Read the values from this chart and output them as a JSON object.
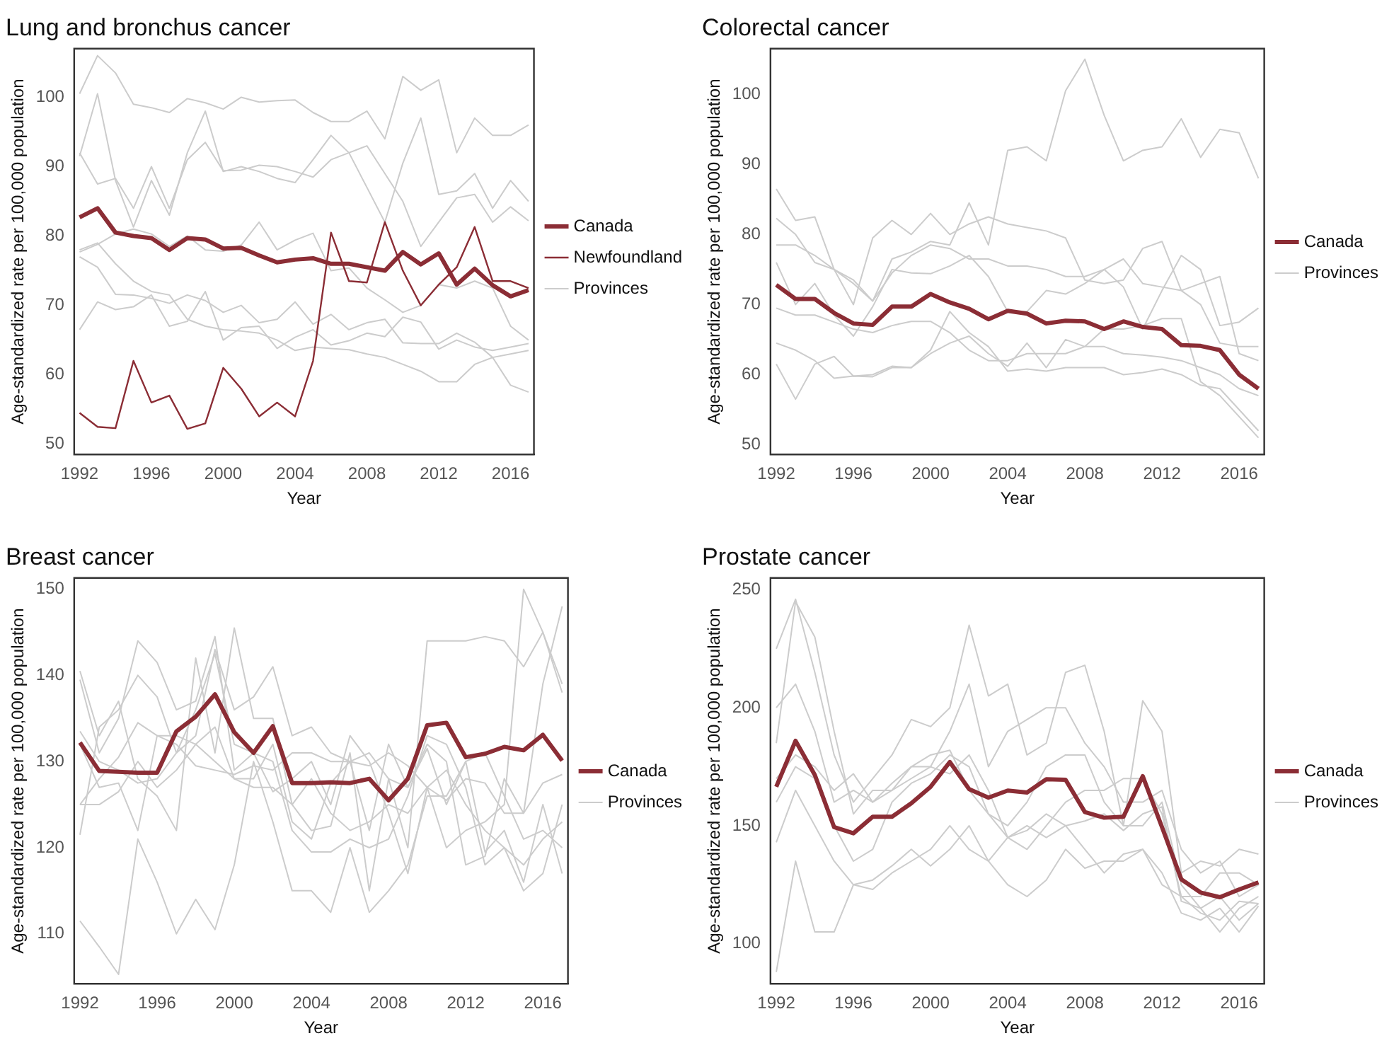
{
  "chart_data": [
    {
      "type": "line",
      "title": "Lung and bronchus cancer",
      "xlabel": "Year",
      "ylabel": "Age-standardized rate per 100,000 population",
      "x": [
        1992,
        1993,
        1994,
        1995,
        1996,
        1997,
        1998,
        1999,
        2000,
        2001,
        2002,
        2003,
        2004,
        2005,
        2006,
        2007,
        2008,
        2009,
        2010,
        2011,
        2012,
        2013,
        2014,
        2015,
        2016,
        2017
      ],
      "xlim": [
        1991.7,
        2017.3
      ],
      "xticks": [
        1992,
        1996,
        2000,
        2004,
        2008,
        2012,
        2016
      ],
      "ylim": [
        48.5,
        107
      ],
      "yticks": [
        50,
        60,
        70,
        80,
        90,
        100
      ],
      "grid": false,
      "legend": "right",
      "series": [
        {
          "name": "Canada",
          "color": "#8b2d35",
          "values": [
            82.7,
            84,
            80.5,
            80,
            79.7,
            78,
            79.7,
            79.5,
            78.2,
            78.3,
            77.2,
            76.2,
            76.6,
            76.8,
            76,
            76,
            75.5,
            75,
            77.7,
            75.9,
            77.5,
            73,
            75.3,
            72.9,
            71.3,
            72.2
          ]
        },
        {
          "name": "Newfoundland",
          "color": "#8b2d35",
          "values": [
            54.5,
            52.5,
            52.3,
            62,
            56,
            57,
            52.2,
            53,
            61,
            58,
            54,
            56,
            54,
            62,
            80.5,
            73.5,
            73.3,
            82,
            75,
            70,
            73,
            75.5,
            81.3,
            73.5,
            73.5,
            72.5
          ]
        },
        {
          "name": "Provinces",
          "color": "#cccccc",
          "values": [
            100.5,
            106,
            103.5,
            99,
            98.5,
            97.8,
            99.8,
            99.2,
            98.3,
            100,
            99.3,
            99.5,
            99.6,
            97.8,
            96.5,
            96.5,
            98,
            94,
            103,
            101,
            102.5,
            92,
            97,
            94.5,
            94.5,
            96
          ]
        },
        {
          "color": "#cccccc",
          "values": [
            91.5,
            100.5,
            88,
            81.3,
            88,
            83,
            92,
            98,
            89.3,
            90,
            89.3,
            88.3,
            87.7,
            91,
            94.5,
            92,
            87,
            82,
            90.5,
            97,
            86,
            86.5,
            89,
            84,
            88,
            85
          ]
        },
        {
          "color": "#cccccc",
          "values": [
            92,
            87.5,
            88.3,
            84,
            90,
            84,
            91,
            93.5,
            89.4,
            89.5,
            90.2,
            90,
            89.3,
            88.5,
            91,
            92,
            93,
            89,
            85,
            78.5,
            82,
            85.5,
            86,
            82,
            84.2,
            82.2
          ]
        },
        {
          "color": "#cccccc",
          "values": [
            77.7,
            78.8,
            80.3,
            81,
            80.3,
            78.5,
            80,
            78,
            77.8,
            78.7,
            82,
            78,
            79.4,
            80.4,
            75,
            75.4,
            72.5,
            70.8,
            69,
            70,
            73,
            72.5,
            73.5,
            72.5,
            67,
            65
          ]
        },
        {
          "color": "#cccccc",
          "values": [
            77,
            75.5,
            71.6,
            71.5,
            71,
            70.3,
            71.5,
            70.7,
            69,
            70,
            67.5,
            68,
            70.5,
            67.3,
            68.7,
            66.5,
            67.5,
            68,
            64.6,
            64.5,
            64.5,
            66,
            64.7,
            62.5,
            63,
            63.5
          ]
        },
        {
          "color": "#cccccc",
          "values": [
            66.5,
            70.5,
            69.4,
            69.8,
            71.5,
            67,
            67.7,
            72,
            65,
            66.8,
            67,
            63.8,
            65.4,
            66.5,
            64.3,
            64.9,
            66,
            65.5,
            68.3,
            67.6,
            63.7,
            65,
            64,
            63.5,
            64,
            64.5
          ]
        },
        {
          "color": "#cccccc",
          "values": [
            78,
            79,
            76,
            73.5,
            72,
            71.5,
            68,
            67,
            66.5,
            66.3,
            66,
            65,
            63.5,
            64,
            63.8,
            63.6,
            63,
            62.5,
            61.5,
            60.5,
            59,
            59,
            61.5,
            62.5,
            58.5,
            57.5
          ]
        }
      ]
    },
    {
      "type": "line",
      "title": "Colorectal cancer",
      "xlabel": "Year",
      "ylabel": "Age-standardized rate per 100,000 population",
      "x": [
        1992,
        1993,
        1994,
        1995,
        1996,
        1997,
        1998,
        1999,
        2000,
        2001,
        2002,
        2003,
        2004,
        2005,
        2006,
        2007,
        2008,
        2009,
        2010,
        2011,
        2012,
        2013,
        2014,
        2015,
        2016,
        2017
      ],
      "xlim": [
        1991.7,
        2017.3
      ],
      "xticks": [
        1992,
        1996,
        2000,
        2004,
        2008,
        2012,
        2016
      ],
      "ylim": [
        48.6,
        106.5
      ],
      "yticks": [
        50,
        60,
        70,
        80,
        90,
        100
      ],
      "grid": false,
      "legend": "right",
      "series": [
        {
          "name": "Canada",
          "color": "#8b2d35",
          "values": [
            72.8,
            70.8,
            70.8,
            68.8,
            67.3,
            67.1,
            69.7,
            69.7,
            71.5,
            70.3,
            69.4,
            67.9,
            69.1,
            68.7,
            67.3,
            67.7,
            67.6,
            66.5,
            67.6,
            66.8,
            66.5,
            64.2,
            64.1,
            63.5,
            60,
            58
          ]
        },
        {
          "name": "Provinces",
          "color": "#cccccc",
          "values": [
            78.5,
            78.5,
            77,
            75,
            73,
            70.5,
            76.5,
            77.5,
            79,
            78.5,
            84.5,
            78.5,
            92,
            92.5,
            90.5,
            100.5,
            105,
            97,
            90.5,
            92,
            92.5,
            96.5,
            91,
            95,
            94.5,
            88
          ]
        },
        {
          "color": "#cccccc",
          "values": [
            86.5,
            82,
            82.5,
            75,
            70,
            79.5,
            82,
            80,
            83,
            80,
            81.5,
            82.5,
            81.5,
            81,
            80.5,
            79.5,
            73.5,
            73,
            73.5,
            78,
            79,
            72,
            73,
            74,
            63,
            62
          ]
        },
        {
          "color": "#cccccc",
          "values": [
            82.3,
            80,
            76,
            75,
            73.5,
            70.5,
            74.5,
            77,
            78.5,
            78,
            76.5,
            76.5,
            75.5,
            75.5,
            75,
            74,
            74,
            75,
            72.5,
            66.5,
            72,
            77,
            75,
            67,
            67.5,
            69.5
          ]
        },
        {
          "color": "#cccccc",
          "values": [
            76,
            70,
            73,
            68.5,
            65.5,
            69.7,
            75,
            74.5,
            74.4,
            75.5,
            77,
            74,
            69,
            69,
            72,
            71.5,
            73,
            75,
            76.5,
            73,
            72.5,
            72,
            70,
            64.5,
            64,
            64
          ]
        },
        {
          "color": "#cccccc",
          "values": [
            69.5,
            68.5,
            68.5,
            67.5,
            66.5,
            66,
            67,
            67.6,
            67.6,
            66,
            63.5,
            62,
            62,
            63,
            63,
            63,
            64,
            64,
            63,
            62.8,
            62.5,
            62,
            61,
            60,
            58,
            57
          ]
        },
        {
          "color": "#cccccc",
          "values": [
            64.5,
            63.5,
            62,
            59.5,
            59.8,
            59.7,
            61,
            61,
            63.5,
            69,
            66,
            64,
            60.5,
            60.8,
            60.5,
            61,
            61,
            61,
            60,
            60.3,
            60.8,
            60,
            58.5,
            58,
            55,
            52
          ]
        },
        {
          "color": "#cccccc",
          "values": [
            61.5,
            56.5,
            61.5,
            62.6,
            59.8,
            60,
            61.2,
            61,
            63,
            64.5,
            65.5,
            63,
            61.2,
            64.5,
            61,
            65,
            64,
            66.5,
            66.5,
            67,
            68,
            68,
            59,
            57,
            54,
            51
          ]
        }
      ]
    },
    {
      "type": "line",
      "title": "Breast cancer",
      "xlabel": "Year",
      "ylabel": "Age-standardized rate per 100,000 population",
      "x": [
        1992,
        1993,
        1994,
        1995,
        1996,
        1997,
        1998,
        1999,
        2000,
        2001,
        2002,
        2003,
        2004,
        2005,
        2006,
        2007,
        2008,
        2009,
        2010,
        2011,
        2012,
        2013,
        2014,
        2015,
        2016,
        2017
      ],
      "xlim": [
        1991.7,
        2017.3
      ],
      "xticks": [
        1992,
        1996,
        2000,
        2004,
        2008,
        2012,
        2016
      ],
      "ylim": [
        104.2,
        151.3
      ],
      "yticks": [
        110,
        120,
        130,
        140,
        150
      ],
      "grid": false,
      "legend": "right",
      "series": [
        {
          "name": "Canada",
          "color": "#8b2d35",
          "values": [
            132.2,
            128.9,
            128.8,
            128.7,
            128.7,
            133.5,
            135.2,
            137.8,
            133.4,
            131,
            134.1,
            127.5,
            127.5,
            127.6,
            127.5,
            128,
            125.5,
            128,
            134.2,
            134.5,
            130.5,
            130.9,
            131.7,
            131.3,
            133.1,
            130.1
          ]
        },
        {
          "name": "Provinces",
          "color": "#cccccc",
          "values": [
            111.5,
            108.5,
            105.3,
            121,
            116,
            110,
            114,
            110.5,
            118,
            130,
            123,
            115,
            115,
            112.5,
            120,
            112.5,
            115,
            118,
            126,
            126,
            130,
            119.5,
            122,
            116,
            125,
            117
          ]
        },
        {
          "color": "#cccccc",
          "values": [
            140.5,
            133,
            137,
            128,
            126,
            122,
            142,
            131,
            145.5,
            135,
            135,
            125,
            122,
            122.5,
            131,
            115,
            128,
            120,
            144,
            144,
            144,
            144.5,
            144,
            141,
            145,
            138
          ]
        },
        {
          "color": "#cccccc",
          "values": [
            121.5,
            134,
            136,
            140,
            137.5,
            131,
            133,
            143,
            136,
            137.5,
            141,
            133,
            134,
            131,
            130,
            131,
            128,
            127,
            131.5,
            125,
            130,
            131,
            126,
            121,
            122,
            120
          ]
        },
        {
          "color": "#cccccc",
          "values": [
            139.5,
            131,
            135,
            144,
            141.5,
            136,
            137,
            144.5,
            129,
            131,
            126.5,
            128,
            130,
            125,
            133,
            130,
            124,
            117,
            127,
            120,
            122,
            123,
            125,
            150,
            145,
            139
          ]
        },
        {
          "color": "#cccccc",
          "values": [
            125,
            128,
            130.5,
            134.5,
            133,
            132,
            129.5,
            129,
            128.5,
            129.5,
            129,
            131,
            131,
            130,
            130,
            129.5,
            131,
            129.5,
            127,
            125.5,
            128,
            127.5,
            124,
            124,
            127.5,
            128.5
          ]
        },
        {
          "color": "#cccccc",
          "values": [
            125,
            125,
            126.5,
            130,
            127,
            129,
            132,
            130,
            128,
            127,
            127,
            125,
            128,
            124,
            122,
            123,
            125,
            124,
            127,
            129,
            125,
            122,
            120,
            118,
            121,
            123
          ]
        },
        {
          "color": "#cccccc",
          "values": [
            133.5,
            130,
            129,
            127.5,
            128,
            131,
            136,
            142.5,
            132,
            131,
            130,
            122,
            119.5,
            119.5,
            121,
            120,
            121,
            126,
            133,
            132,
            127,
            118,
            120,
            115,
            117,
            125
          ]
        },
        {
          "color": "#cccccc",
          "values": [
            132,
            127,
            127.5,
            122,
            133,
            133,
            132,
            134,
            128,
            128,
            132,
            123,
            121,
            127.5,
            130,
            122,
            132,
            127,
            132,
            130,
            118,
            119,
            128,
            124,
            139,
            148
          ]
        }
      ]
    },
    {
      "type": "line",
      "title": "Prostate cancer",
      "xlabel": "Year",
      "ylabel": "Age-standardized rate per 100,000 population",
      "x": [
        1992,
        1993,
        1994,
        1995,
        1996,
        1997,
        1998,
        1999,
        2000,
        2001,
        2002,
        2003,
        2004,
        2005,
        2006,
        2007,
        2008,
        2009,
        2010,
        2011,
        2012,
        2013,
        2014,
        2015,
        2016,
        2017
      ],
      "xlim": [
        1991.7,
        2017.3
      ],
      "xticks": [
        1992,
        1996,
        2000,
        2004,
        2008,
        2012,
        2016
      ],
      "ylim": [
        83,
        255
      ],
      "yticks": [
        100,
        150,
        200,
        250
      ],
      "grid": false,
      "legend": "right",
      "series": [
        {
          "name": "Canada",
          "color": "#8b2d35",
          "values": [
            166.5,
            186,
            171.5,
            149.4,
            146.8,
            153.8,
            153.8,
            159.5,
            166.5,
            177,
            165.5,
            161.9,
            164.9,
            164.1,
            169.7,
            169.5,
            155.8,
            153.4,
            153.8,
            171,
            149.4,
            127.3,
            121.7,
            119.7,
            123,
            126
          ]
        },
        {
          "name": "Provinces",
          "color": "#cccccc",
          "values": [
            225,
            246,
            215,
            180,
            160,
            170,
            180,
            195,
            192,
            200,
            235,
            205,
            210,
            180,
            185,
            215,
            218,
            190,
            150,
            203,
            190,
            130,
            135,
            133,
            140,
            138
          ]
        },
        {
          "color": "#cccccc",
          "values": [
            185,
            245,
            230,
            190,
            155,
            165,
            165,
            170,
            175,
            190,
            210,
            175,
            190,
            195,
            200,
            200,
            185,
            175,
            160,
            160,
            165,
            140,
            130,
            135,
            120,
            125
          ]
        },
        {
          "color": "#cccccc",
          "values": [
            200,
            210,
            190,
            160,
            165,
            160,
            168,
            175,
            180,
            182,
            165,
            155,
            150,
            160,
            175,
            180,
            180,
            160,
            150,
            150,
            160,
            125,
            115,
            120,
            110,
            117
          ]
        },
        {
          "color": "#cccccc",
          "values": [
            170,
            180,
            175,
            165,
            172,
            160,
            165,
            175,
            175,
            172,
            180,
            165,
            145,
            140,
            150,
            160,
            165,
            165,
            170,
            170,
            155,
            120,
            120,
            130,
            130,
            125
          ]
        },
        {
          "color": "#cccccc",
          "values": [
            160,
            175,
            170,
            150,
            135,
            140,
            160,
            168,
            172,
            180,
            175,
            155,
            145,
            150,
            145,
            150,
            152,
            155,
            148,
            155,
            158,
            118,
            115,
            105,
            115,
            120
          ]
        },
        {
          "color": "#cccccc",
          "values": [
            143,
            165,
            150,
            135,
            125,
            123,
            130,
            135,
            140,
            150,
            140,
            135,
            145,
            148,
            155,
            150,
            140,
            130,
            138,
            140,
            125,
            120,
            113,
            110,
            118,
            117
          ]
        },
        {
          "color": "#cccccc",
          "values": [
            88,
            135,
            105,
            105,
            125,
            127,
            133,
            140,
            133,
            140,
            150,
            135,
            125,
            120,
            127,
            140,
            132,
            135,
            135,
            140,
            130,
            113,
            110,
            115,
            105,
            116
          ]
        }
      ]
    }
  ]
}
